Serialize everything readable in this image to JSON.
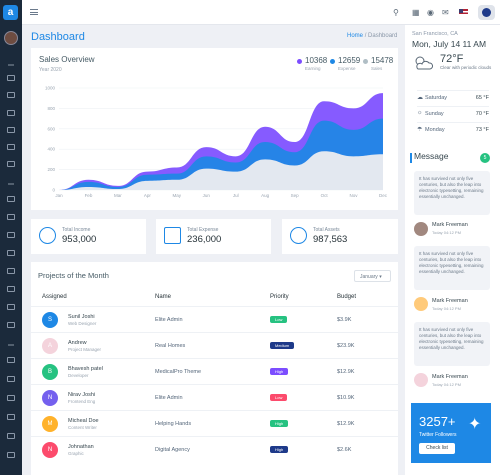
{
  "app": {
    "logo_letter": "a"
  },
  "header": {
    "title": "Dashboard",
    "breadcrumb_home": "Home",
    "breadcrumb_sep": "/",
    "breadcrumb_current": "Dashboard"
  },
  "sales": {
    "title": "Sales Overview",
    "subtitle": "Year 2020",
    "legend": [
      {
        "value": "10368",
        "label": "Earning",
        "color": "#7c4dff"
      },
      {
        "value": "12659",
        "label": "Expense",
        "color": "#1e88e5"
      },
      {
        "value": "15478",
        "label": "Sales",
        "color": "#b0bec5"
      }
    ]
  },
  "chart_data": {
    "type": "area",
    "title": "Sales Overview",
    "subtitle": "Year 2020",
    "categories": [
      "Jan",
      "Feb",
      "Mar",
      "Apr",
      "May",
      "Jun",
      "Jul",
      "Aug",
      "Sep",
      "Oct",
      "Nov",
      "Dec"
    ],
    "ylim": [
      0,
      1000
    ],
    "yticks": [
      0,
      200,
      400,
      600,
      800,
      1000
    ],
    "series": [
      {
        "name": "Earning",
        "color": "#7c4dff",
        "values": [
          0,
          100,
          40,
          180,
          220,
          420,
          330,
          620,
          470,
          870,
          800,
          950
        ]
      },
      {
        "name": "Expense",
        "color": "#1e88e5",
        "values": [
          0,
          80,
          30,
          150,
          160,
          330,
          270,
          470,
          370,
          680,
          590,
          700
        ]
      },
      {
        "name": "Sales",
        "color": "#e3e8f0",
        "values": [
          0,
          30,
          10,
          90,
          100,
          210,
          180,
          300,
          240,
          380,
          330,
          350
        ]
      }
    ]
  },
  "stats": [
    {
      "label": "Total Income",
      "value": "953,000"
    },
    {
      "label": "Total Expense",
      "value": "236,000"
    },
    {
      "label": "Total Assets",
      "value": "987,563"
    }
  ],
  "projects": {
    "title": "Projects of the Month",
    "filter": "January",
    "headers": [
      "Assigned",
      "Name",
      "Priority",
      "Budget"
    ],
    "rows": [
      {
        "initial": "S",
        "name": "Sunil Joshi",
        "role": "Web Designer",
        "project": "Elite Admin",
        "priority": "Low",
        "budget": "$3.9K",
        "color": "#1e88e5",
        "badge": "#26c281"
      },
      {
        "initial": "A",
        "name": "Andrew",
        "role": "Project Manager",
        "project": "Real Homes",
        "priority": "Medium",
        "budget": "$23.9K",
        "color": "#f4d3dc",
        "badge": "#1e3a8a"
      },
      {
        "initial": "B",
        "name": "Bhavesh patel",
        "role": "Developer",
        "project": "MedicalPro Theme",
        "priority": "High",
        "budget": "$12.9K",
        "color": "#26c281",
        "badge": "#7c4dff"
      },
      {
        "initial": "N",
        "name": "Nirav Joshi",
        "role": "Frontend Eng",
        "project": "Elite Admin",
        "priority": "Low",
        "budget": "$10.9K",
        "color": "#7460ee",
        "badge": "#fc4b6c"
      },
      {
        "initial": "M",
        "name": "Micheal Doe",
        "role": "Content Writer",
        "project": "Helping Hands",
        "priority": "High",
        "budget": "$12.9K",
        "color": "#ffb22b",
        "badge": "#26c281"
      },
      {
        "initial": "N",
        "name": "Johnathan",
        "role": "Graphic",
        "project": "Digital Agency",
        "priority": "High",
        "budget": "$2.6K",
        "color": "#fc4b6c",
        "badge": "#1e3a8a"
      }
    ]
  },
  "weather": {
    "location": "San Francisco, CA",
    "datetime": "Mon, July 14 11 AM",
    "temp": "72°F",
    "condition": "Clear with periodic clouds",
    "forecast": [
      {
        "day": "Saturday",
        "temp": "65 °F"
      },
      {
        "day": "Sunday",
        "temp": "70 °F"
      },
      {
        "day": "Monday",
        "temp": "73 °F"
      }
    ]
  },
  "messages": {
    "title": "Message",
    "count": "5",
    "text": "It has survived not only five centuries, but also the leap into electronic typesetting, remaining essentially unchanged.",
    "sender": "Mark Freeman",
    "time": "Today 04:12 PM"
  },
  "twitter": {
    "count": "3257+",
    "label": "Twitter Followers",
    "button": "Check list"
  }
}
